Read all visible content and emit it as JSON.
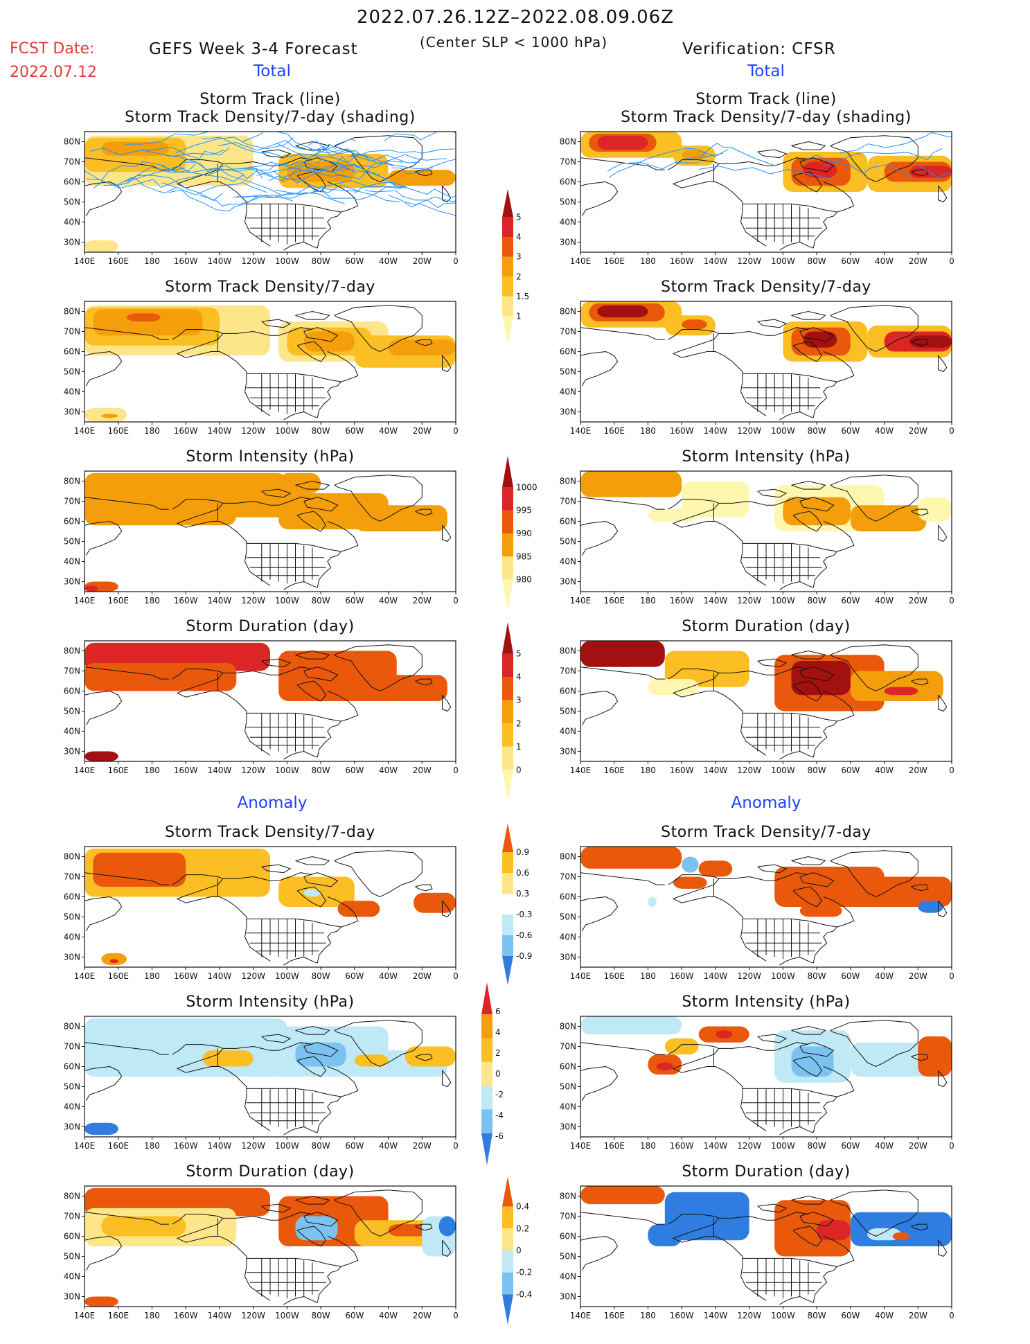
{
  "header": {
    "date_range": "2022.07.26.12Z–2022.08.09.06Z",
    "fcst_label": "FCST Date:",
    "fcst_date": "2022.07.12",
    "model": "GEFS Week 3-4 Forecast",
    "criterion": "(Center SLP < 1000 hPa)",
    "verification": "Verification: CFSR"
  },
  "sections": {
    "total_left": "Total",
    "total_right": "Total",
    "anomaly_left": "Anomaly",
    "anomaly_right": "Anomaly"
  },
  "panel_titles": {
    "track_line": "Storm Track (line)",
    "track_shading": "Storm Track Density/7-day (shading)",
    "density": "Storm Track Density/7-day",
    "intensity": "Storm Intensity (hPa)",
    "duration": "Storm Duration (day)"
  },
  "colors": {
    "very_light_yellow": "#fff7b0",
    "light_yellow": "#fde68a",
    "gold": "#fbbf24",
    "orange": "#f59e0b",
    "dark_orange": "#ea580c",
    "red": "#dc2626",
    "dark_red": "#a31010",
    "light_blue": "#bfe9f5",
    "mid_blue": "#7cc2f0",
    "blue": "#2f7de0",
    "track_blue": "#1e90ff"
  },
  "chart_data": [
    {
      "type": "heatmap",
      "panel": "forecast-total-track",
      "title": "Storm Track (line) / Storm Track Density/7-day (shading)",
      "x_ticks": [
        "140E",
        "160E",
        "180",
        "160W",
        "140W",
        "120W",
        "100W",
        "80W",
        "60W",
        "40W",
        "20W",
        "0"
      ],
      "y_ticks": [
        "80N",
        "70N",
        "60N",
        "50N",
        "40N",
        "30N"
      ],
      "levels": [
        1,
        1.5,
        2,
        3,
        4,
        5
      ]
    },
    {
      "type": "heatmap",
      "panel": "forecast-total-density",
      "title": "Storm Track Density/7-day",
      "levels": [
        1,
        1.5,
        2,
        3,
        4,
        5
      ]
    },
    {
      "type": "heatmap",
      "panel": "forecast-total-intensity",
      "title": "Storm Intensity (hPa)",
      "levels": [
        1000,
        995,
        990,
        985,
        980
      ]
    },
    {
      "type": "heatmap",
      "panel": "forecast-total-duration",
      "title": "Storm Duration (day)",
      "levels": [
        0,
        1,
        2,
        3,
        4,
        5
      ]
    },
    {
      "type": "heatmap",
      "panel": "forecast-anomaly-density",
      "title": "Storm Track Density/7-day",
      "levels": [
        -0.9,
        -0.6,
        -0.3,
        0.3,
        0.6,
        0.9
      ]
    },
    {
      "type": "heatmap",
      "panel": "forecast-anomaly-intensity",
      "title": "Storm Intensity (hPa)",
      "levels": [
        -6,
        -4,
        -2,
        0,
        2,
        4,
        6
      ]
    },
    {
      "type": "heatmap",
      "panel": "forecast-anomaly-duration",
      "title": "Storm Duration (day)",
      "levels": [
        -0.4,
        -0.2,
        0,
        0.2,
        0.4
      ]
    },
    {
      "type": "heatmap",
      "panel": "cfsr-total-track",
      "title": "Storm Track (line) / Storm Track Density/7-day (shading)"
    },
    {
      "type": "heatmap",
      "panel": "cfsr-total-density",
      "title": "Storm Track Density/7-day"
    },
    {
      "type": "heatmap",
      "panel": "cfsr-total-intensity",
      "title": "Storm Intensity (hPa)"
    },
    {
      "type": "heatmap",
      "panel": "cfsr-total-duration",
      "title": "Storm Duration (day)"
    },
    {
      "type": "heatmap",
      "panel": "cfsr-anomaly-density",
      "title": "Storm Track Density/7-day"
    },
    {
      "type": "heatmap",
      "panel": "cfsr-anomaly-intensity",
      "title": "Storm Intensity (hPa)"
    },
    {
      "type": "heatmap",
      "panel": "cfsr-anomaly-duration",
      "title": "Storm Duration (day)"
    }
  ],
  "axes": {
    "x_ticks": [
      "140E",
      "160E",
      "180",
      "160W",
      "140W",
      "120W",
      "100W",
      "80W",
      "60W",
      "40W",
      "20W",
      "0"
    ],
    "y_ticks": [
      "80N",
      "70N",
      "60N",
      "50N",
      "40N",
      "30N"
    ]
  },
  "colorbars": {
    "density_total": [
      "5",
      "4",
      "3",
      "2",
      "1.5",
      "1"
    ],
    "intensity_total": [
      "1000",
      "995",
      "990",
      "985",
      "980"
    ],
    "duration_total": [
      "5",
      "4",
      "3",
      "2",
      "1",
      "0"
    ],
    "density_anom": [
      "0.9",
      "0.6",
      "0.3",
      "-0.3",
      "-0.6",
      "-0.9"
    ],
    "intensity_anom": [
      "6",
      "4",
      "2",
      "0",
      "-2",
      "-4",
      "-6"
    ],
    "duration_anom": [
      "0.4",
      "0.2",
      "0",
      "-0.2",
      "-0.4"
    ]
  }
}
